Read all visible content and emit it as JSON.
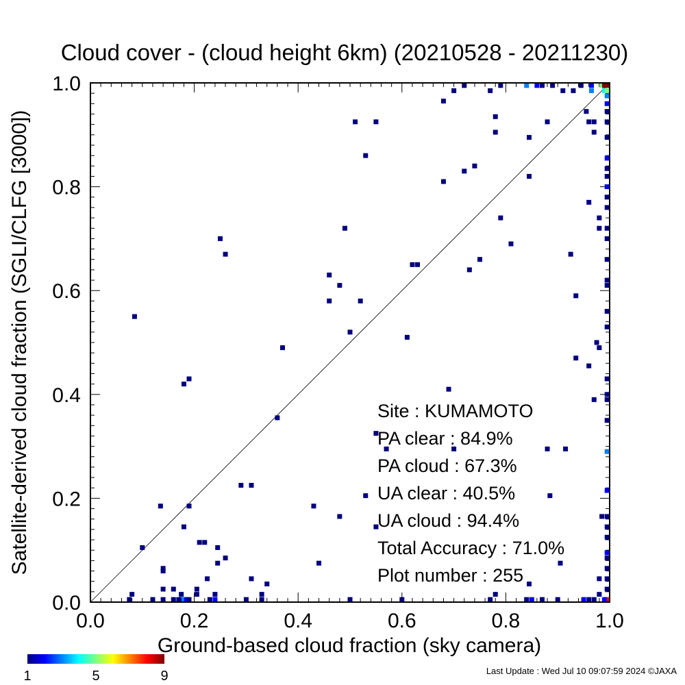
{
  "chart_data": {
    "type": "scatter",
    "title": "Cloud cover - (cloud height 6km)  (20210528 - 20211230)",
    "xlabel": "Ground-based cloud fraction (sky camera)",
    "ylabel": "Satellite-derived cloud fraction (SGLI/CLFG [3000])",
    "xlim": [
      0.0,
      1.0
    ],
    "ylim": [
      0.0,
      1.0
    ],
    "xticks": [
      "0.0",
      "0.2",
      "0.4",
      "0.6",
      "0.8",
      "1.0"
    ],
    "yticks": [
      "0.0",
      "0.2",
      "0.4",
      "0.6",
      "0.8",
      "1.0"
    ],
    "grid": false,
    "reference_line": "1:1 diagonal",
    "colorbar": {
      "min": 1,
      "max": 9,
      "labels": [
        "1",
        "5",
        "9"
      ]
    },
    "stats": [
      "Site : KUMAMOTO",
      "PA clear :  84.9%",
      "PA cloud :  67.3%",
      "UA clear :  40.5%",
      "UA cloud :  94.4%",
      "Total Accuracy :  71.0%",
      "Plot number :       255"
    ],
    "points": [
      [
        0.085,
        0.55,
        1
      ],
      [
        0.1,
        0.105,
        1
      ],
      [
        0.135,
        0.185,
        1
      ],
      [
        0.14,
        0.06,
        1
      ],
      [
        0.14,
        0.065,
        1
      ],
      [
        0.14,
        0.025,
        1
      ],
      [
        0.16,
        0.025,
        1
      ],
      [
        0.175,
        0.015,
        1
      ],
      [
        0.18,
        0.145,
        1
      ],
      [
        0.18,
        0.42,
        1
      ],
      [
        0.19,
        0.43,
        1
      ],
      [
        0.19,
        0.185,
        1
      ],
      [
        0.205,
        0.025,
        1
      ],
      [
        0.205,
        0.015,
        1
      ],
      [
        0.21,
        0.115,
        1
      ],
      [
        0.22,
        0.115,
        1
      ],
      [
        0.225,
        0.045,
        1
      ],
      [
        0.245,
        0.105,
        1
      ],
      [
        0.245,
        0.075,
        1
      ],
      [
        0.25,
        0.7,
        1
      ],
      [
        0.26,
        0.67,
        1
      ],
      [
        0.26,
        0.085,
        1
      ],
      [
        0.29,
        0.225,
        1
      ],
      [
        0.31,
        0.225,
        1
      ],
      [
        0.31,
        0.045,
        1
      ],
      [
        0.33,
        0.015,
        1
      ],
      [
        0.34,
        0.035,
        1
      ],
      [
        0.36,
        0.355,
        1
      ],
      [
        0.37,
        0.49,
        1
      ],
      [
        0.43,
        0.185,
        1
      ],
      [
        0.44,
        0.075,
        1
      ],
      [
        0.46,
        0.63,
        1
      ],
      [
        0.46,
        0.58,
        1
      ],
      [
        0.48,
        0.61,
        1
      ],
      [
        0.48,
        0.165,
        1
      ],
      [
        0.49,
        0.72,
        1
      ],
      [
        0.5,
        0.52,
        1
      ],
      [
        0.51,
        0.925,
        1
      ],
      [
        0.52,
        0.58,
        1
      ],
      [
        0.53,
        0.86,
        1
      ],
      [
        0.53,
        0.205,
        1
      ],
      [
        0.55,
        0.925,
        1
      ],
      [
        0.55,
        0.325,
        1
      ],
      [
        0.55,
        0.145,
        1
      ],
      [
        0.57,
        0.295,
        1
      ],
      [
        0.61,
        0.51,
        1
      ],
      [
        0.62,
        0.65,
        1
      ],
      [
        0.63,
        0.65,
        1
      ],
      [
        0.68,
        0.81,
        1
      ],
      [
        0.68,
        0.965,
        1
      ],
      [
        0.69,
        0.41,
        1
      ],
      [
        0.7,
        0.985,
        1
      ],
      [
        0.7,
        0.295,
        1
      ],
      [
        0.72,
        0.83,
        1
      ],
      [
        0.72,
        0.995,
        1
      ],
      [
        0.73,
        0.64,
        1
      ],
      [
        0.74,
        0.84,
        1
      ],
      [
        0.75,
        0.66,
        1
      ],
      [
        0.77,
        0.985,
        1
      ],
      [
        0.78,
        0.935,
        1
      ],
      [
        0.78,
        0.905,
        1
      ],
      [
        0.78,
        0.015,
        1
      ],
      [
        0.79,
        0.74,
        1
      ],
      [
        0.79,
        0.995,
        1
      ],
      [
        0.81,
        0.69,
        1
      ],
      [
        0.84,
        0.995,
        3
      ],
      [
        0.845,
        0.82,
        1
      ],
      [
        0.845,
        0.895,
        1
      ],
      [
        0.845,
        0.035,
        1
      ],
      [
        0.86,
        0.995,
        2
      ],
      [
        0.87,
        0.995,
        1
      ],
      [
        0.88,
        0.925,
        1
      ],
      [
        0.88,
        0.295,
        1
      ],
      [
        0.885,
        0.205,
        1
      ],
      [
        0.89,
        0.995,
        1
      ],
      [
        0.91,
        0.985,
        1
      ],
      [
        0.915,
        0.295,
        1
      ],
      [
        0.925,
        0.67,
        1
      ],
      [
        0.93,
        0.985,
        1
      ],
      [
        0.935,
        0.59,
        1
      ],
      [
        0.935,
        0.47,
        1
      ],
      [
        0.945,
        0.995,
        1
      ],
      [
        0.955,
        0.945,
        1
      ],
      [
        0.96,
        0.925,
        1
      ],
      [
        0.96,
        0.77,
        1
      ],
      [
        0.96,
        0.455,
        1
      ],
      [
        0.965,
        0.985,
        3
      ],
      [
        0.965,
        0.995,
        2
      ],
      [
        0.97,
        0.925,
        1
      ],
      [
        0.97,
        0.905,
        1
      ],
      [
        0.97,
        0.39,
        1
      ],
      [
        0.975,
        0.5,
        1
      ],
      [
        0.98,
        0.74,
        1
      ],
      [
        0.98,
        0.72,
        1
      ],
      [
        0.98,
        0.49,
        1
      ],
      [
        0.98,
        0.045,
        1
      ],
      [
        0.985,
        0.995,
        5
      ],
      [
        0.985,
        0.165,
        1
      ],
      [
        0.99,
        0.995,
        9
      ],
      [
        0.99,
        0.985,
        4
      ],
      [
        0.995,
        0.995,
        9
      ],
      [
        0.995,
        0.985,
        5
      ],
      [
        0.995,
        0.975,
        3
      ],
      [
        0.995,
        0.96,
        2
      ],
      [
        0.995,
        0.945,
        1
      ],
      [
        0.995,
        0.925,
        1
      ],
      [
        0.995,
        0.895,
        1
      ],
      [
        0.995,
        0.855,
        2
      ],
      [
        0.995,
        0.835,
        1
      ],
      [
        0.995,
        0.82,
        1
      ],
      [
        0.995,
        0.8,
        2
      ],
      [
        0.995,
        0.78,
        1
      ],
      [
        0.995,
        0.76,
        1
      ],
      [
        0.995,
        0.72,
        1
      ],
      [
        0.995,
        0.7,
        1
      ],
      [
        0.995,
        0.66,
        1
      ],
      [
        0.995,
        0.62,
        1
      ],
      [
        0.995,
        0.61,
        1
      ],
      [
        0.995,
        0.56,
        1
      ],
      [
        0.995,
        0.53,
        1
      ],
      [
        0.995,
        0.43,
        1
      ],
      [
        0.995,
        0.4,
        1
      ],
      [
        0.995,
        0.39,
        1
      ],
      [
        0.995,
        0.35,
        1
      ],
      [
        0.995,
        0.29,
        3
      ],
      [
        0.995,
        0.215,
        2
      ],
      [
        0.995,
        0.165,
        1
      ],
      [
        0.995,
        0.145,
        1
      ],
      [
        0.995,
        0.125,
        1
      ],
      [
        0.995,
        0.095,
        2
      ],
      [
        0.995,
        0.085,
        1
      ],
      [
        0.995,
        0.065,
        1
      ],
      [
        0.995,
        0.045,
        1
      ],
      [
        0.995,
        0.025,
        1
      ],
      [
        0.995,
        0.005,
        8
      ],
      [
        0.99,
        0.005,
        2
      ],
      [
        0.075,
        0.005,
        1
      ],
      [
        0.08,
        0.015,
        1
      ],
      [
        0.12,
        0.005,
        1
      ],
      [
        0.14,
        0.005,
        1
      ],
      [
        0.16,
        0.005,
        1
      ],
      [
        0.17,
        0.005,
        1
      ],
      [
        0.175,
        0.005,
        1
      ],
      [
        0.18,
        0.005,
        3
      ],
      [
        0.185,
        0.005,
        2
      ],
      [
        0.19,
        0.005,
        1
      ],
      [
        0.23,
        0.005,
        1
      ],
      [
        0.24,
        0.005,
        2
      ],
      [
        0.24,
        0.015,
        1
      ],
      [
        0.3,
        0.005,
        1
      ],
      [
        0.33,
        0.005,
        1
      ],
      [
        0.5,
        0.005,
        1
      ],
      [
        0.6,
        0.005,
        1
      ],
      [
        0.77,
        0.005,
        1
      ],
      [
        0.84,
        0.005,
        1
      ],
      [
        0.85,
        0.005,
        2
      ],
      [
        0.87,
        0.005,
        1
      ],
      [
        0.9,
        0.005,
        1
      ],
      [
        0.95,
        0.005,
        2
      ],
      [
        0.96,
        0.005,
        1
      ],
      [
        0.97,
        0.005,
        1
      ],
      [
        0.98,
        0.015,
        1
      ],
      [
        0.905,
        0.075,
        1
      ]
    ]
  },
  "footer": {
    "last_update": "Last Update : Wed Jul 10 09:07:59 2024  ©JAXA"
  }
}
